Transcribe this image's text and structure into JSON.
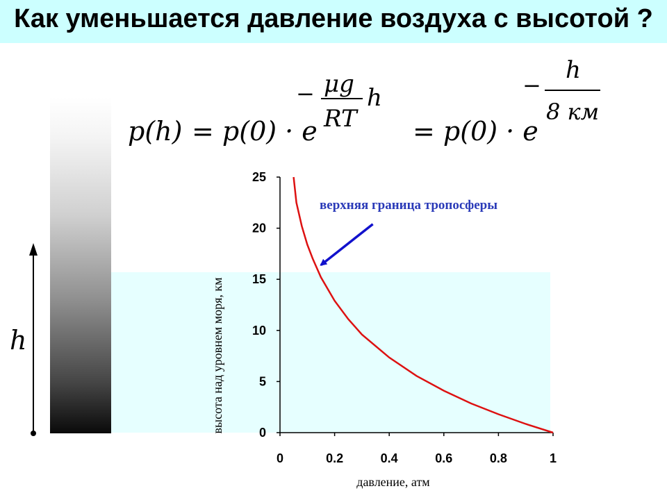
{
  "title": "Как уменьшается давление воздуха с высотой ?",
  "side_axis_label": "h",
  "formula": {
    "lhs": "p(h)",
    "eq1": "= p(0) · e",
    "exp1_minus": "−",
    "exp1_numerator": "μg",
    "exp1_denominator": "RT",
    "exp1_variable": "h",
    "eq2": "= p(0) · e",
    "exp2_minus": "−",
    "exp2_numerator": "h",
    "exp2_denominator": "8 км"
  },
  "chart_data": {
    "type": "line",
    "xlabel": "давление, атм",
    "ylabel": "высота над уровнем моря, км",
    "xlim": [
      0,
      1
    ],
    "ylim": [
      0,
      25
    ],
    "xticks": [
      "0",
      "0.2",
      "0.4",
      "0.6",
      "0.8",
      "1"
    ],
    "yticks": [
      "0",
      "5",
      "10",
      "15",
      "20",
      "25"
    ],
    "grid": false,
    "band": {
      "y_from": 0,
      "y_to": 15.7,
      "color": "#e6ffff"
    },
    "series": [
      {
        "color": "#dd1111",
        "x": [
          1.0,
          0.9,
          0.8,
          0.7,
          0.6,
          0.5,
          0.4,
          0.3,
          0.25,
          0.2,
          0.15,
          0.12,
          0.1,
          0.08,
          0.06,
          0.05
        ],
        "y": [
          0,
          0.85,
          1.8,
          2.85,
          4.1,
          5.55,
          7.35,
          9.6,
          11.1,
          12.9,
          15.2,
          17.0,
          18.4,
          20.2,
          22.5,
          25.0
        ]
      }
    ],
    "annotation": {
      "text": "верхняя граница тропосферы",
      "color": "#2a3ab8",
      "arrow_color": "#1111cc",
      "arrow_from": [
        0.34,
        20.4
      ],
      "arrow_to": [
        0.15,
        16.4
      ]
    }
  }
}
